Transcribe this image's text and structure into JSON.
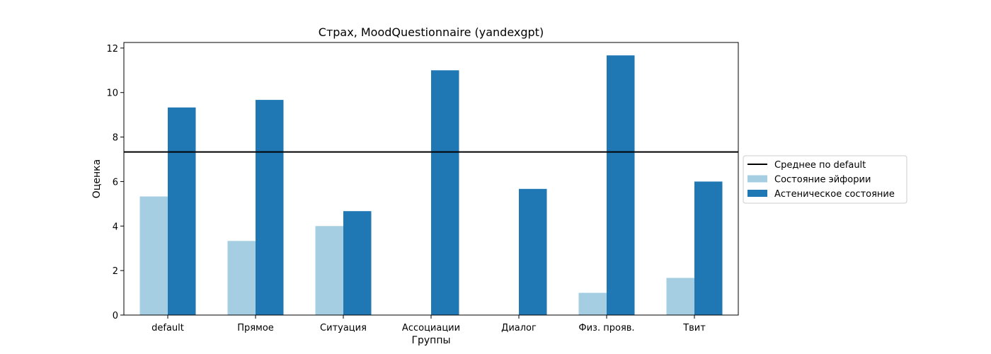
{
  "chart_data": {
    "type": "bar",
    "title": "Страх, MoodQuestionnaire (yandexgpt)",
    "xlabel": "Группы",
    "ylabel": "Оценка",
    "categories": [
      "default",
      "Прямое",
      "Ситуация",
      "Ассоциации",
      "Диалог",
      "Физ. прояв.",
      "Твит"
    ],
    "series": [
      {
        "name": "Состояние эйфории",
        "color": "#a6cee3",
        "values": [
          5.33,
          3.33,
          4.0,
          0.0,
          0.0,
          1.0,
          1.67
        ]
      },
      {
        "name": "Астеническое состояние",
        "color": "#1f78b4",
        "values": [
          9.33,
          9.67,
          4.67,
          11.0,
          5.67,
          11.67,
          6.0
        ]
      }
    ],
    "reference_line": {
      "name": "Среднее по default",
      "value": 7.33,
      "color": "#000000"
    },
    "ylim": [
      0,
      12.25
    ],
    "yticks": [
      0,
      2,
      4,
      6,
      8,
      10,
      12
    ],
    "grid": false,
    "legend_position": "outside-right"
  }
}
